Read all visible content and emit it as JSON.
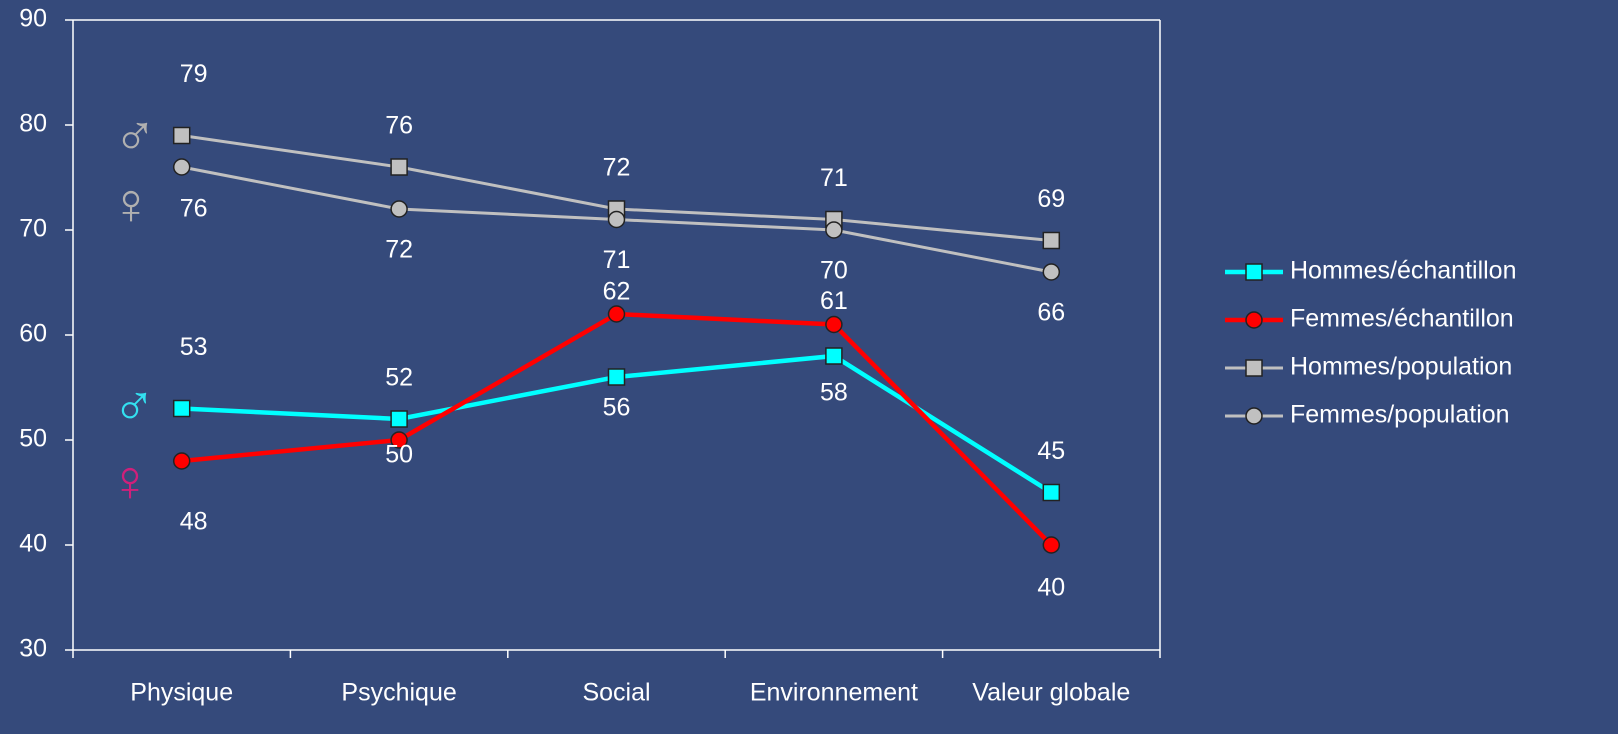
{
  "chart_data": {
    "type": "line",
    "categories": [
      "Physique",
      "Psychique",
      "Social",
      "Environnement",
      "Valeur globale"
    ],
    "ylim": [
      30,
      90
    ],
    "yticks": [
      30,
      40,
      50,
      60,
      70,
      80,
      90
    ],
    "legend": "right",
    "series": [
      {
        "name": "Hommes/échantillon",
        "color": "#00ffff",
        "marker": "square",
        "values": [
          53,
          52,
          56,
          58,
          45
        ]
      },
      {
        "name": "Femmes/échantillon",
        "color": "#ff0000",
        "marker": "circle",
        "values": [
          48,
          50,
          62,
          61,
          40
        ]
      },
      {
        "name": "Hommes/population",
        "color": "#c0c0c0",
        "marker": "square",
        "values": [
          79,
          76,
          72,
          71,
          69
        ]
      },
      {
        "name": "Femmes/population",
        "color": "#c0c0c0",
        "marker": "circle",
        "values": [
          76,
          72,
          71,
          70,
          66
        ]
      }
    ],
    "annotations": [
      {
        "text": "♂",
        "color": "#b0b0b0"
      },
      {
        "text": "♀",
        "color": "#b0b0b0"
      },
      {
        "text": "♂",
        "color": "#33e0f0"
      },
      {
        "text": "♀",
        "color": "#d0207a"
      }
    ]
  }
}
